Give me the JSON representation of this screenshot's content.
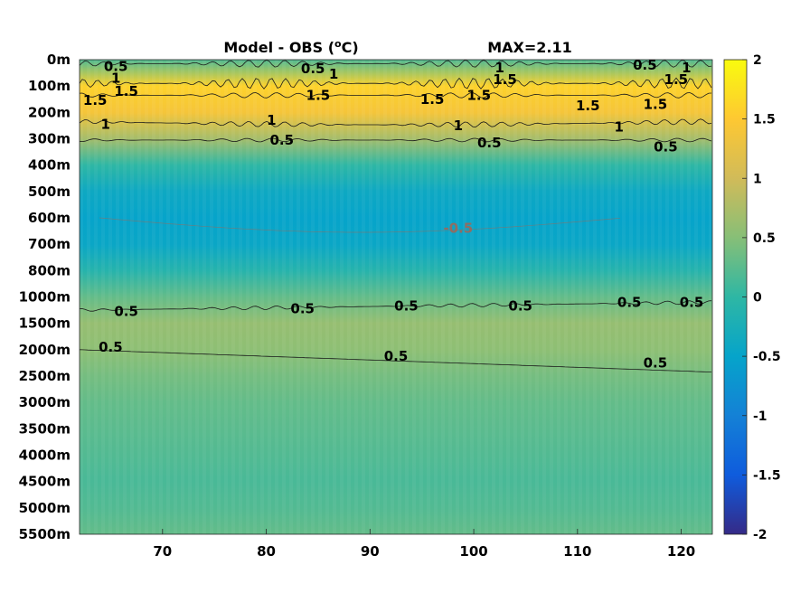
{
  "chart_data": {
    "type": "heatmap",
    "title_left": "Model - OBS (",
    "title_unit_sup": "o",
    "title_unit_end": "C)",
    "title_right": "MAX=2.11",
    "xlabel": "",
    "ylabel": "",
    "x_ticks": [
      70,
      80,
      90,
      100,
      110,
      120
    ],
    "xlim": [
      62,
      123
    ],
    "y_tick_labels": [
      "0m",
      "100m",
      "200m",
      "300m",
      "400m",
      "500m",
      "600m",
      "700m",
      "800m",
      "1000m",
      "1500m",
      "2000m",
      "2500m",
      "3000m",
      "3500m",
      "4000m",
      "4500m",
      "5000m",
      "5500m"
    ],
    "colorbar": {
      "ticks": [
        2,
        1.5,
        1,
        0.5,
        0,
        -0.5,
        -1,
        -1.5,
        -2
      ],
      "tick_labels": [
        "2",
        "1.5",
        "1",
        "0.5",
        "0",
        "-0.5",
        "-1",
        "-1.5",
        "-2"
      ],
      "range": [
        -2,
        2
      ],
      "colormap": "parula"
    },
    "depth_profile": [
      {
        "depth": "0m",
        "value": 0.2
      },
      {
        "depth": "100m",
        "value": 1.6
      },
      {
        "depth": "200m",
        "value": 1.4
      },
      {
        "depth": "300m",
        "value": 0.7
      },
      {
        "depth": "400m",
        "value": 0.0
      },
      {
        "depth": "500m",
        "value": -0.4
      },
      {
        "depth": "600m",
        "value": -0.5
      },
      {
        "depth": "700m",
        "value": -0.45
      },
      {
        "depth": "800m",
        "value": -0.1
      },
      {
        "depth": "1000m",
        "value": 0.3
      },
      {
        "depth": "1500m",
        "value": 0.6
      },
      {
        "depth": "2000m",
        "value": 0.55
      },
      {
        "depth": "2500m",
        "value": 0.4
      },
      {
        "depth": "3000m",
        "value": 0.3
      },
      {
        "depth": "3500m",
        "value": 0.25
      },
      {
        "depth": "4000m",
        "value": 0.2
      },
      {
        "depth": "4500m",
        "value": 0.15
      },
      {
        "depth": "5000m",
        "value": 0.2
      },
      {
        "depth": "5500m",
        "value": 0.3
      }
    ],
    "contour_labels": [
      {
        "text": "0.5",
        "x": 65.5,
        "depth_index": 0.25
      },
      {
        "text": "1",
        "x": 65.5,
        "depth_index": 0.7
      },
      {
        "text": "1.5",
        "x": 63.5,
        "depth_index": 1.55
      },
      {
        "text": "1.5",
        "x": 66.5,
        "depth_index": 1.2
      },
      {
        "text": "1",
        "x": 64.5,
        "depth_index": 2.45
      },
      {
        "text": "0.5",
        "x": 84.5,
        "depth_index": 0.35
      },
      {
        "text": "1",
        "x": 86.5,
        "depth_index": 0.55
      },
      {
        "text": "1.5",
        "x": 85,
        "depth_index": 1.35
      },
      {
        "text": "1.5",
        "x": 96,
        "depth_index": 1.5
      },
      {
        "text": "1.5",
        "x": 100.5,
        "depth_index": 1.35
      },
      {
        "text": "1",
        "x": 102.5,
        "depth_index": 0.3
      },
      {
        "text": "1.5",
        "x": 103,
        "depth_index": 0.75
      },
      {
        "text": "1.5",
        "x": 111,
        "depth_index": 1.75
      },
      {
        "text": "0.5",
        "x": 116.5,
        "depth_index": 0.2
      },
      {
        "text": "1",
        "x": 120.5,
        "depth_index": 0.3
      },
      {
        "text": "1.5",
        "x": 119.5,
        "depth_index": 0.75
      },
      {
        "text": "1.5",
        "x": 117.5,
        "depth_index": 1.7
      },
      {
        "text": "1",
        "x": 80.5,
        "depth_index": 2.3
      },
      {
        "text": "1",
        "x": 98.5,
        "depth_index": 2.5
      },
      {
        "text": "1",
        "x": 114,
        "depth_index": 2.55
      },
      {
        "text": "0.5",
        "x": 81.5,
        "depth_index": 3.05
      },
      {
        "text": "0.5",
        "x": 101.5,
        "depth_index": 3.15
      },
      {
        "text": "0.5",
        "x": 118.5,
        "depth_index": 3.3
      },
      {
        "text": "0.5",
        "x": 66.5,
        "depth_index": 9.55
      },
      {
        "text": "0.5",
        "x": 83.5,
        "depth_index": 9.45
      },
      {
        "text": "0.5",
        "x": 93.5,
        "depth_index": 9.35
      },
      {
        "text": "0.5",
        "x": 104.5,
        "depth_index": 9.35
      },
      {
        "text": "0.5",
        "x": 115,
        "depth_index": 9.2
      },
      {
        "text": "0.5",
        "x": 121,
        "depth_index": 9.2
      },
      {
        "text": "0.5",
        "x": 65,
        "depth_index": 10.9
      },
      {
        "text": "0.5",
        "x": 92.5,
        "depth_index": 11.25
      },
      {
        "text": "0.5",
        "x": 117.5,
        "depth_index": 11.5
      },
      {
        "text": "-0.5",
        "x": 98.5,
        "depth_index": 6.4,
        "faded": true
      }
    ]
  }
}
